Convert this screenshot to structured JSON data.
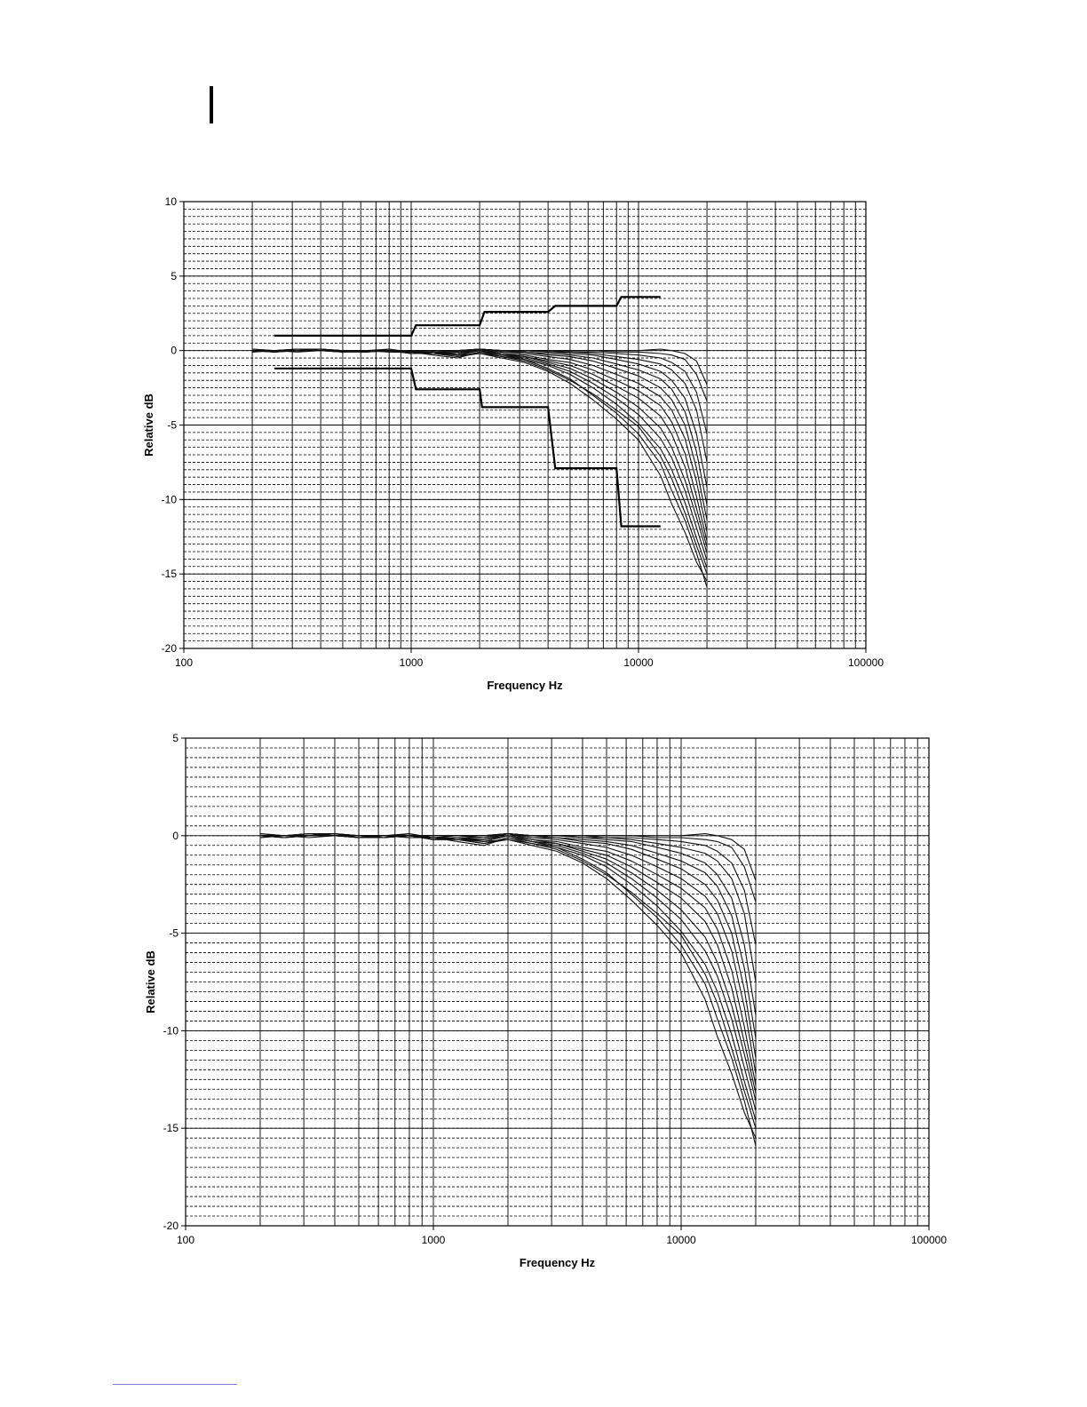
{
  "colors": {
    "background": "#ffffff",
    "ink": "#000000",
    "footnote_rule": "#7a84c9"
  },
  "chart_data": [
    {
      "type": "line",
      "title": "",
      "xlabel": "Frequency Hz",
      "ylabel": "Relative dB",
      "x_scale": "log",
      "xlim": [
        100,
        100000
      ],
      "ylim": [
        -20,
        10
      ],
      "x_ticks": [
        "100",
        "1000",
        "10000",
        "100000"
      ],
      "y_ticks": [
        "10",
        "5",
        "0",
        "-5",
        "-10",
        "-15",
        "-20"
      ],
      "grid": true,
      "legend": "none",
      "tolerance_upper": {
        "x": [
          250,
          1000,
          1050,
          2000,
          2100,
          4000,
          4300,
          8000,
          8400,
          12500
        ],
        "y": [
          1.0,
          1.0,
          1.7,
          1.7,
          2.6,
          2.6,
          3.0,
          3.0,
          3.6,
          3.6
        ]
      },
      "tolerance_lower": {
        "x": [
          250,
          1000,
          1050,
          2000,
          2050,
          4000,
          4300,
          8000,
          8400,
          12500
        ],
        "y": [
          -1.2,
          -1.2,
          -2.6,
          -2.6,
          -3.8,
          -3.8,
          -7.9,
          -7.9,
          -11.8,
          -11.8
        ]
      },
      "curves_x": [
        200,
        250,
        315,
        400,
        500,
        630,
        800,
        1000,
        1250,
        1600,
        2000,
        2500,
        3150,
        4000,
        5000,
        6300,
        8000,
        10000,
        12500,
        14000,
        16000,
        18000,
        20000
      ],
      "series": [
        {
          "values": [
            0.0,
            -0.1,
            0.0,
            0.1,
            -0.1,
            -0.1,
            0.0,
            -0.2,
            -0.2,
            -0.4,
            -0.2,
            -0.5,
            -0.8,
            -1.4,
            -2.2,
            -3.3,
            -4.6,
            -6.0,
            -8.4,
            -10.3,
            -12.2,
            -14.2,
            -15.5
          ]
        },
        {
          "values": [
            -0.1,
            0.0,
            0.1,
            0.0,
            -0.1,
            0.0,
            -0.1,
            -0.1,
            -0.3,
            -0.5,
            -0.1,
            -0.4,
            -0.6,
            -1.2,
            -1.9,
            -3.0,
            -4.2,
            -5.6,
            -7.6,
            -9.4,
            -11.4,
            -13.6,
            -15.9
          ]
        },
        {
          "values": [
            0.0,
            -0.1,
            0.0,
            0.1,
            0.0,
            -0.1,
            0.0,
            -0.2,
            -0.2,
            -0.3,
            -0.2,
            -0.4,
            -0.7,
            -1.3,
            -2.0,
            -2.9,
            -4.0,
            -5.1,
            -7.1,
            -8.6,
            -10.9,
            -13.1,
            -15.0
          ]
        },
        {
          "values": [
            0.1,
            0.0,
            -0.1,
            0.0,
            -0.1,
            0.0,
            0.0,
            -0.1,
            -0.2,
            -0.4,
            -0.1,
            -0.3,
            -0.6,
            -1.0,
            -1.6,
            -2.5,
            -3.6,
            -4.9,
            -6.6,
            -8.0,
            -10.2,
            -12.6,
            -14.6
          ]
        },
        {
          "values": [
            0.0,
            0.0,
            0.1,
            0.0,
            0.0,
            -0.1,
            0.1,
            -0.2,
            -0.1,
            -0.3,
            0.0,
            -0.3,
            -0.5,
            -0.9,
            -1.4,
            -2.2,
            -3.2,
            -4.3,
            -5.9,
            -7.2,
            -9.4,
            -11.9,
            -14.1
          ]
        },
        {
          "values": [
            -0.1,
            0.0,
            0.0,
            0.1,
            0.0,
            0.0,
            -0.1,
            -0.1,
            -0.2,
            -0.2,
            0.1,
            -0.2,
            -0.4,
            -0.8,
            -1.2,
            -1.9,
            -2.8,
            -3.8,
            -5.2,
            -6.5,
            -8.7,
            -11.2,
            -13.6
          ]
        },
        {
          "values": [
            0.0,
            -0.1,
            0.0,
            0.0,
            -0.1,
            0.0,
            0.0,
            -0.2,
            -0.1,
            -0.3,
            0.0,
            -0.3,
            -0.4,
            -0.7,
            -1.0,
            -1.6,
            -2.4,
            -3.2,
            -4.4,
            -5.6,
            -7.8,
            -10.6,
            -13.2
          ]
        },
        {
          "values": [
            0.0,
            0.0,
            0.1,
            0.1,
            0.0,
            -0.1,
            0.0,
            -0.1,
            -0.2,
            -0.2,
            0.0,
            -0.2,
            -0.3,
            -0.6,
            -0.8,
            -1.3,
            -2.0,
            -2.7,
            -3.7,
            -4.8,
            -6.9,
            -9.8,
            -12.8
          ]
        },
        {
          "values": [
            0.1,
            0.0,
            0.0,
            0.0,
            0.0,
            0.0,
            0.1,
            -0.1,
            -0.1,
            -0.2,
            0.1,
            -0.1,
            -0.2,
            -0.4,
            -0.6,
            -1.0,
            -1.6,
            -2.2,
            -3.1,
            -4.0,
            -5.9,
            -8.8,
            -12.2
          ]
        },
        {
          "values": [
            0.0,
            0.0,
            0.0,
            0.1,
            0.0,
            0.0,
            0.0,
            -0.1,
            -0.1,
            -0.1,
            0.1,
            -0.1,
            -0.1,
            -0.3,
            -0.4,
            -0.7,
            -1.2,
            -1.7,
            -2.5,
            -3.3,
            -5.0,
            -7.9,
            -11.4
          ]
        },
        {
          "values": [
            0.0,
            0.0,
            0.0,
            0.0,
            0.0,
            0.0,
            0.0,
            -0.1,
            0.0,
            -0.1,
            0.1,
            0.0,
            -0.1,
            -0.2,
            -0.3,
            -0.5,
            -0.9,
            -1.3,
            -1.9,
            -2.6,
            -4.1,
            -6.8,
            -10.4
          ]
        },
        {
          "values": [
            0.0,
            0.0,
            0.0,
            0.0,
            0.0,
            0.0,
            0.0,
            0.0,
            0.0,
            -0.1,
            0.1,
            0.0,
            0.0,
            -0.1,
            -0.2,
            -0.3,
            -0.6,
            -0.9,
            -1.4,
            -2.0,
            -3.2,
            -5.6,
            -9.2
          ]
        },
        {
          "values": [
            0.0,
            0.0,
            0.0,
            0.0,
            0.0,
            0.0,
            0.0,
            0.0,
            0.0,
            0.0,
            0.1,
            0.0,
            0.0,
            -0.1,
            -0.1,
            -0.2,
            -0.4,
            -0.6,
            -0.9,
            -1.3,
            -2.2,
            -4.0,
            -7.5
          ]
        },
        {
          "values": [
            0.0,
            0.0,
            0.0,
            0.0,
            0.0,
            0.0,
            0.0,
            0.0,
            0.0,
            0.0,
            0.1,
            0.0,
            0.0,
            0.0,
            -0.1,
            -0.1,
            -0.2,
            -0.3,
            -0.5,
            -0.8,
            -1.4,
            -2.8,
            -5.6
          ]
        },
        {
          "values": [
            0.0,
            0.0,
            0.0,
            0.0,
            0.0,
            0.0,
            0.0,
            0.0,
            0.0,
            0.0,
            0.1,
            0.0,
            0.0,
            0.0,
            0.0,
            0.0,
            -0.1,
            -0.1,
            -0.2,
            -0.3,
            -0.6,
            -1.6,
            -3.4
          ]
        },
        {
          "values": [
            0.0,
            0.0,
            0.0,
            0.0,
            0.0,
            0.0,
            0.0,
            0.0,
            0.0,
            0.0,
            0.1,
            0.0,
            0.0,
            0.0,
            0.0,
            0.0,
            0.0,
            0.0,
            0.1,
            0.0,
            -0.2,
            -0.7,
            -2.3
          ]
        }
      ]
    },
    {
      "type": "line",
      "title": "",
      "xlabel": "Frequency Hz",
      "ylabel": "Relative dB",
      "x_scale": "log",
      "xlim": [
        100,
        100000
      ],
      "ylim": [
        -20,
        5
      ],
      "x_ticks": [
        "100",
        "1000",
        "10000",
        "100000"
      ],
      "y_ticks": [
        "5",
        "0",
        "-5",
        "-10",
        "-15",
        "-20"
      ],
      "grid": true,
      "legend": "none",
      "curves_x": [
        200,
        250,
        315,
        400,
        500,
        630,
        800,
        1000,
        1250,
        1600,
        2000,
        2500,
        3150,
        4000,
        5000,
        6300,
        8000,
        10000,
        12500,
        14000,
        16000,
        18000,
        20000
      ],
      "series": [
        {
          "values": [
            0.0,
            -0.1,
            0.0,
            0.1,
            -0.1,
            -0.1,
            0.0,
            -0.2,
            -0.2,
            -0.4,
            -0.2,
            -0.5,
            -0.8,
            -1.4,
            -2.2,
            -3.3,
            -4.6,
            -6.0,
            -8.4,
            -10.3,
            -12.2,
            -14.2,
            -15.5
          ]
        },
        {
          "values": [
            -0.1,
            0.0,
            0.1,
            0.0,
            -0.1,
            0.0,
            -0.1,
            -0.1,
            -0.3,
            -0.5,
            -0.1,
            -0.4,
            -0.6,
            -1.2,
            -1.9,
            -3.0,
            -4.2,
            -5.6,
            -7.6,
            -9.4,
            -11.4,
            -13.6,
            -15.9
          ]
        },
        {
          "values": [
            0.0,
            -0.1,
            0.0,
            0.1,
            0.0,
            -0.1,
            0.0,
            -0.2,
            -0.2,
            -0.3,
            -0.2,
            -0.4,
            -0.7,
            -1.3,
            -2.0,
            -2.9,
            -4.0,
            -5.1,
            -7.1,
            -8.6,
            -10.9,
            -13.1,
            -15.0
          ]
        },
        {
          "values": [
            0.1,
            0.0,
            -0.1,
            0.0,
            -0.1,
            0.0,
            0.0,
            -0.1,
            -0.2,
            -0.4,
            -0.1,
            -0.3,
            -0.6,
            -1.0,
            -1.6,
            -2.5,
            -3.6,
            -4.9,
            -6.6,
            -8.0,
            -10.2,
            -12.6,
            -14.6
          ]
        },
        {
          "values": [
            0.0,
            0.0,
            0.1,
            0.0,
            0.0,
            -0.1,
            0.1,
            -0.2,
            -0.1,
            -0.3,
            0.0,
            -0.3,
            -0.5,
            -0.9,
            -1.4,
            -2.2,
            -3.2,
            -4.3,
            -5.9,
            -7.2,
            -9.4,
            -11.9,
            -14.1
          ]
        },
        {
          "values": [
            -0.1,
            0.0,
            0.0,
            0.1,
            0.0,
            0.0,
            -0.1,
            -0.1,
            -0.2,
            -0.2,
            0.1,
            -0.2,
            -0.4,
            -0.8,
            -1.2,
            -1.9,
            -2.8,
            -3.8,
            -5.2,
            -6.5,
            -8.7,
            -11.2,
            -13.6
          ]
        },
        {
          "values": [
            0.0,
            -0.1,
            0.0,
            0.0,
            -0.1,
            0.0,
            0.0,
            -0.2,
            -0.1,
            -0.3,
            0.0,
            -0.3,
            -0.4,
            -0.7,
            -1.0,
            -1.6,
            -2.4,
            -3.2,
            -4.4,
            -5.6,
            -7.8,
            -10.6,
            -13.2
          ]
        },
        {
          "values": [
            0.0,
            0.0,
            0.1,
            0.1,
            0.0,
            -0.1,
            0.0,
            -0.1,
            -0.2,
            -0.2,
            0.0,
            -0.2,
            -0.3,
            -0.6,
            -0.8,
            -1.3,
            -2.0,
            -2.7,
            -3.7,
            -4.8,
            -6.9,
            -9.8,
            -12.8
          ]
        },
        {
          "values": [
            0.1,
            0.0,
            0.0,
            0.0,
            0.0,
            0.0,
            0.1,
            -0.1,
            -0.1,
            -0.2,
            0.1,
            -0.1,
            -0.2,
            -0.4,
            -0.6,
            -1.0,
            -1.6,
            -2.2,
            -3.1,
            -4.0,
            -5.9,
            -8.8,
            -12.2
          ]
        },
        {
          "values": [
            0.0,
            0.0,
            0.0,
            0.1,
            0.0,
            0.0,
            0.0,
            -0.1,
            -0.1,
            -0.1,
            0.1,
            -0.1,
            -0.1,
            -0.3,
            -0.4,
            -0.7,
            -1.2,
            -1.7,
            -2.5,
            -3.3,
            -5.0,
            -7.9,
            -11.4
          ]
        },
        {
          "values": [
            0.0,
            0.0,
            0.0,
            0.0,
            0.0,
            0.0,
            0.0,
            -0.1,
            0.0,
            -0.1,
            0.1,
            0.0,
            -0.1,
            -0.2,
            -0.3,
            -0.5,
            -0.9,
            -1.3,
            -1.9,
            -2.6,
            -4.1,
            -6.8,
            -10.4
          ]
        },
        {
          "values": [
            0.0,
            0.0,
            0.0,
            0.0,
            0.0,
            0.0,
            0.0,
            0.0,
            0.0,
            -0.1,
            0.1,
            0.0,
            0.0,
            -0.1,
            -0.2,
            -0.3,
            -0.6,
            -0.9,
            -1.4,
            -2.0,
            -3.2,
            -5.6,
            -9.2
          ]
        },
        {
          "values": [
            0.0,
            0.0,
            0.0,
            0.0,
            0.0,
            0.0,
            0.0,
            0.0,
            0.0,
            0.0,
            0.1,
            0.0,
            0.0,
            -0.1,
            -0.1,
            -0.2,
            -0.4,
            -0.6,
            -0.9,
            -1.3,
            -2.2,
            -4.0,
            -7.5
          ]
        },
        {
          "values": [
            0.0,
            0.0,
            0.0,
            0.0,
            0.0,
            0.0,
            0.0,
            0.0,
            0.0,
            0.0,
            0.1,
            0.0,
            0.0,
            0.0,
            -0.1,
            -0.1,
            -0.2,
            -0.3,
            -0.5,
            -0.8,
            -1.4,
            -2.8,
            -5.6
          ]
        },
        {
          "values": [
            0.0,
            0.0,
            0.0,
            0.0,
            0.0,
            0.0,
            0.0,
            0.0,
            0.0,
            0.0,
            0.1,
            0.0,
            0.0,
            0.0,
            0.0,
            0.0,
            -0.1,
            -0.1,
            -0.2,
            -0.3,
            -0.6,
            -1.6,
            -3.4
          ]
        },
        {
          "values": [
            0.0,
            0.0,
            0.0,
            0.0,
            0.0,
            0.0,
            0.0,
            0.0,
            0.0,
            0.0,
            0.1,
            0.0,
            0.0,
            0.0,
            0.0,
            0.0,
            0.0,
            0.0,
            0.1,
            0.0,
            -0.2,
            -0.7,
            -2.3
          ]
        }
      ]
    }
  ]
}
